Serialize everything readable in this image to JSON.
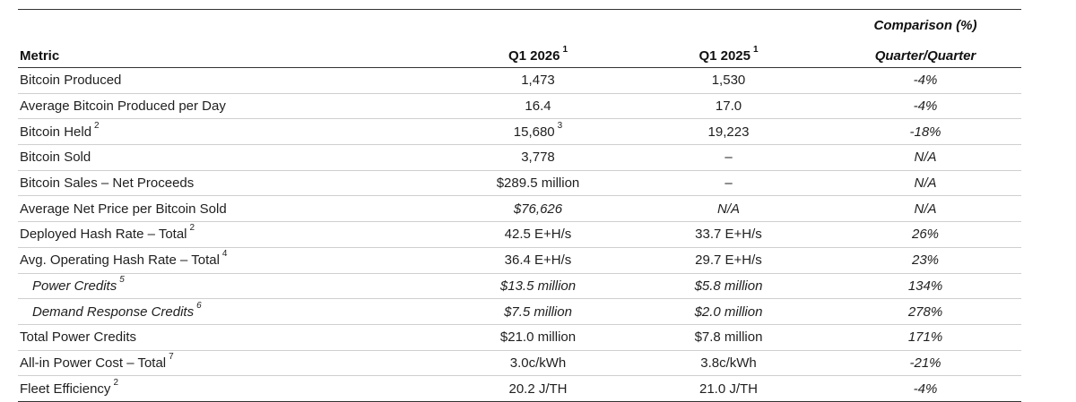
{
  "table": {
    "header": {
      "metric": "Metric",
      "q1_2026": "Q1 2026",
      "q1_2026_note": "1",
      "q1_2025": "Q1 2025",
      "q1_2025_note": "1",
      "comparison_line1": "Comparison (%)",
      "comparison_line2": "Quarter/Quarter"
    },
    "rows": [
      {
        "metric": "Bitcoin Produced",
        "note": "",
        "q1_2026": "1,473",
        "q1_2026_note": "",
        "q1_2025": "1,530",
        "comparison": "-4%"
      },
      {
        "metric": "Average Bitcoin Produced per Day",
        "note": "",
        "q1_2026": "16.4",
        "q1_2026_note": "",
        "q1_2025": "17.0",
        "comparison": "-4%"
      },
      {
        "metric": "Bitcoin Held",
        "note": "2",
        "q1_2026": "15,680",
        "q1_2026_note": "3",
        "q1_2025": "19,223",
        "comparison": "-18%"
      },
      {
        "metric": "Bitcoin Sold",
        "note": "",
        "q1_2026": "3,778",
        "q1_2026_note": "",
        "q1_2025": "–",
        "comparison": "N/A"
      },
      {
        "metric": "Bitcoin Sales – Net Proceeds",
        "note": "",
        "q1_2026": "$289.5 million",
        "q1_2026_note": "",
        "q1_2025": "–",
        "comparison": "N/A"
      },
      {
        "metric": "Average Net Price per Bitcoin Sold",
        "note": "",
        "q1_2026": "$76,626",
        "q1_2026_note": "",
        "q1_2025": "N/A",
        "comparison": "N/A"
      },
      {
        "metric": "Deployed Hash Rate – Total",
        "note": "2",
        "q1_2026": "42.5 E+H/s",
        "q1_2026_note": "",
        "q1_2025": "33.7 E+H/s",
        "comparison": "26%"
      },
      {
        "metric": "Avg. Operating Hash Rate – Total",
        "note": "4",
        "q1_2026": "36.4 E+H/s",
        "q1_2026_note": "",
        "q1_2025": "29.7 E+H/s",
        "comparison": "23%"
      },
      {
        "metric": "Power Credits",
        "note": "5",
        "q1_2026": "$13.5 million",
        "q1_2026_note": "",
        "q1_2025": "$5.8 million",
        "comparison": "134%"
      },
      {
        "metric": "Demand Response Credits",
        "note": "6",
        "q1_2026": "$7.5 million",
        "q1_2026_note": "",
        "q1_2025": "$2.0 million",
        "comparison": "278%"
      },
      {
        "metric": "Total Power Credits",
        "note": "",
        "q1_2026": "$21.0 million",
        "q1_2026_note": "",
        "q1_2025": "$7.8 million",
        "comparison": "171%"
      },
      {
        "metric": "All-in Power Cost – Total",
        "note": "7",
        "q1_2026": "3.0c/kWh",
        "q1_2026_note": "",
        "q1_2025": "3.8c/kWh",
        "comparison": "-21%"
      },
      {
        "metric": "Fleet Efficiency",
        "note": "2",
        "q1_2026": "20.2 J/TH",
        "q1_2026_note": "",
        "q1_2025": "21.0 J/TH",
        "comparison": "-4%"
      }
    ]
  }
}
